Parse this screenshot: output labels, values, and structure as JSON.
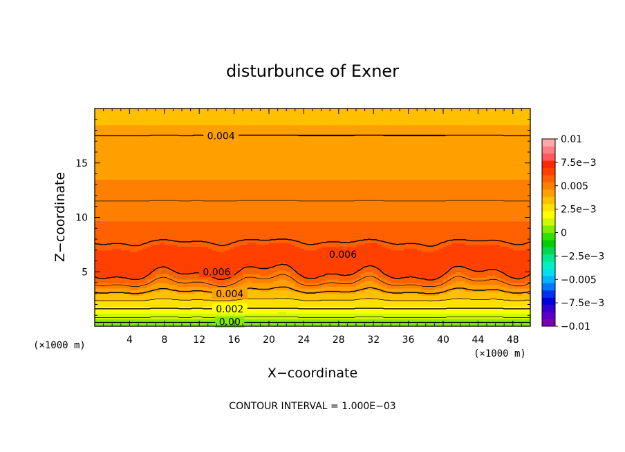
{
  "chart_data": {
    "type": "heatmap",
    "title": "disturbunce of Exner",
    "xlabel": "X−coordinate",
    "ylabel": "Z−coordinate",
    "x_unit_left": "(×1000 m)",
    "x_unit_right": "(×1000 m)",
    "xlim": [
      0,
      50
    ],
    "ylim": [
      0,
      20
    ],
    "x_ticks": [
      4,
      8,
      12,
      16,
      20,
      24,
      28,
      32,
      36,
      40,
      44,
      48
    ],
    "y_ticks": [
      5,
      10,
      15
    ],
    "note": "CONTOUR INTERVAL = 1.000E−03",
    "colorbar": {
      "min": -0.01,
      "max": 0.01,
      "tick_values": [
        0.01,
        0.0075,
        0.005,
        0.0025,
        0,
        -0.0025,
        -0.005,
        -0.0075,
        -0.01
      ],
      "tick_labels": [
        "0.01",
        "7.5e−3",
        "0.005",
        "2.5e−3",
        "0",
        "−2.5e−3",
        "−0.005",
        "−7.5e−3",
        "−0.01"
      ],
      "colors": [
        "#7a00b4",
        "#5a00c8",
        "#3800d0",
        "#0000dc",
        "#0030f0",
        "#0078ff",
        "#00b4ff",
        "#00e0f0",
        "#00f0c0",
        "#00e890",
        "#00d850",
        "#00d000",
        "#30e000",
        "#80ee00",
        "#d0f800",
        "#ffff00",
        "#ffe000",
        "#ffc000",
        "#ffa000",
        "#ff8000",
        "#ff6000",
        "#ff4000",
        "#ff2800",
        "#ff5858",
        "#ff8080",
        "#ffa8a8"
      ]
    },
    "field_profile": {
      "z": [
        0,
        0.8,
        1.6,
        2.4,
        3.2,
        4.0,
        5.0,
        6.0,
        7.0,
        8.5,
        10.0,
        11.5,
        13.0,
        15.0,
        17.5,
        20.0
      ],
      "value": [
        0.0,
        0.001,
        0.002,
        0.003,
        0.004,
        0.005,
        0.0062,
        0.0066,
        0.0063,
        0.0057,
        0.0053,
        0.005,
        0.0047,
        0.0044,
        0.004,
        0.0036
      ]
    },
    "contours": [
      {
        "label": "0.004",
        "x": 14.5,
        "z": 17.5
      },
      {
        "label": "0.006",
        "x": 28.5,
        "z": 6.6
      },
      {
        "label": "0.006",
        "x": 14.0,
        "z": 5.0
      },
      {
        "label": "0.004",
        "x": 15.5,
        "z": 3.0
      },
      {
        "label": "0.002",
        "x": 15.5,
        "z": 1.6
      },
      {
        "label": "0.00",
        "x": 15.5,
        "z": 0.4
      }
    ]
  }
}
